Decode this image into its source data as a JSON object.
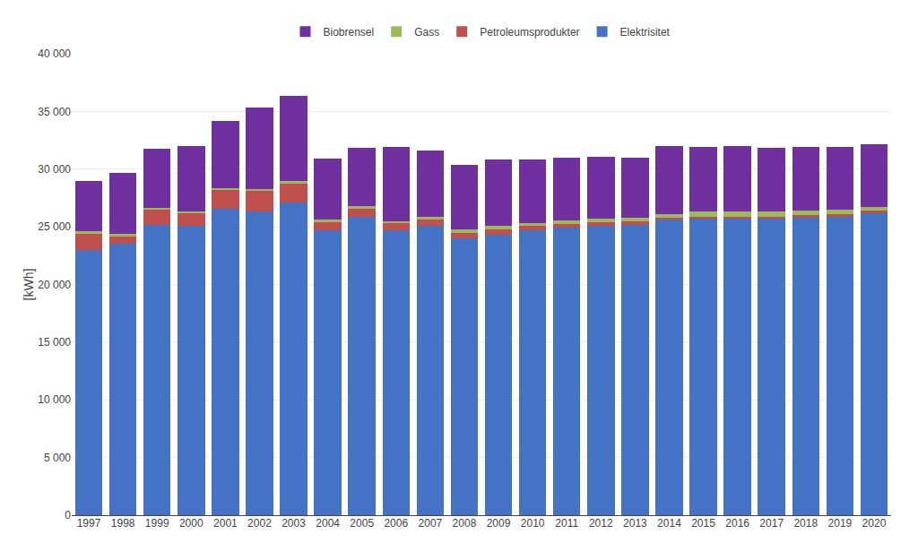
{
  "chart_data": {
    "type": "bar",
    "stacked": true,
    "ylabel": "[kWh]",
    "categories": [
      "1997",
      "1998",
      "1999",
      "2000",
      "2001",
      "2002",
      "2003",
      "2004",
      "2005",
      "2006",
      "2007",
      "2008",
      "2009",
      "2010",
      "2011",
      "2012",
      "2013",
      "2014",
      "2015",
      "2016",
      "2017",
      "2018",
      "2019",
      "2020"
    ],
    "series": [
      {
        "name": "Elektrisitet",
        "color": "#4472C4",
        "values": [
          23000,
          23500,
          25200,
          25100,
          26600,
          26300,
          27100,
          24700,
          25900,
          24700,
          25100,
          24000,
          24300,
          24700,
          24900,
          25100,
          25200,
          25600,
          25700,
          25700,
          25700,
          25800,
          25900,
          26200
        ]
      },
      {
        "name": "Petroleumsprodukter",
        "color": "#C0504D",
        "values": [
          1400,
          700,
          1300,
          1100,
          1600,
          1800,
          1600,
          700,
          700,
          600,
          500,
          500,
          450,
          350,
          350,
          300,
          250,
          200,
          200,
          200,
          200,
          200,
          200,
          200
        ]
      },
      {
        "name": "Gass",
        "color": "#9BBB59",
        "values": [
          200,
          150,
          150,
          100,
          150,
          200,
          300,
          250,
          200,
          200,
          300,
          300,
          300,
          300,
          300,
          300,
          300,
          300,
          400,
          400,
          400,
          400,
          350,
          300
        ]
      },
      {
        "name": "Biobrensel",
        "color": "#7030A0",
        "values": [
          4400,
          5350,
          5100,
          5700,
          5800,
          7050,
          7350,
          5250,
          5050,
          6400,
          5700,
          5600,
          5750,
          5450,
          5450,
          5350,
          5250,
          5900,
          5650,
          5700,
          5550,
          5550,
          5500,
          5450
        ]
      }
    ],
    "ylim": [
      0,
      40000
    ],
    "yticks": [
      0,
      {
        "value": 5000,
        "label": "5 000"
      },
      {
        "value": 10000,
        "label": "10 000"
      },
      {
        "value": 15000,
        "label": "15 000"
      },
      {
        "value": 20000,
        "label": "20 000"
      },
      {
        "value": 25000,
        "label": "25 000"
      },
      {
        "value": 30000,
        "label": "30 000"
      },
      {
        "value": 35000,
        "label": "35 000"
      },
      {
        "value": 40000,
        "label": "40 000"
      }
    ],
    "grid": true,
    "legend": "upper center"
  }
}
